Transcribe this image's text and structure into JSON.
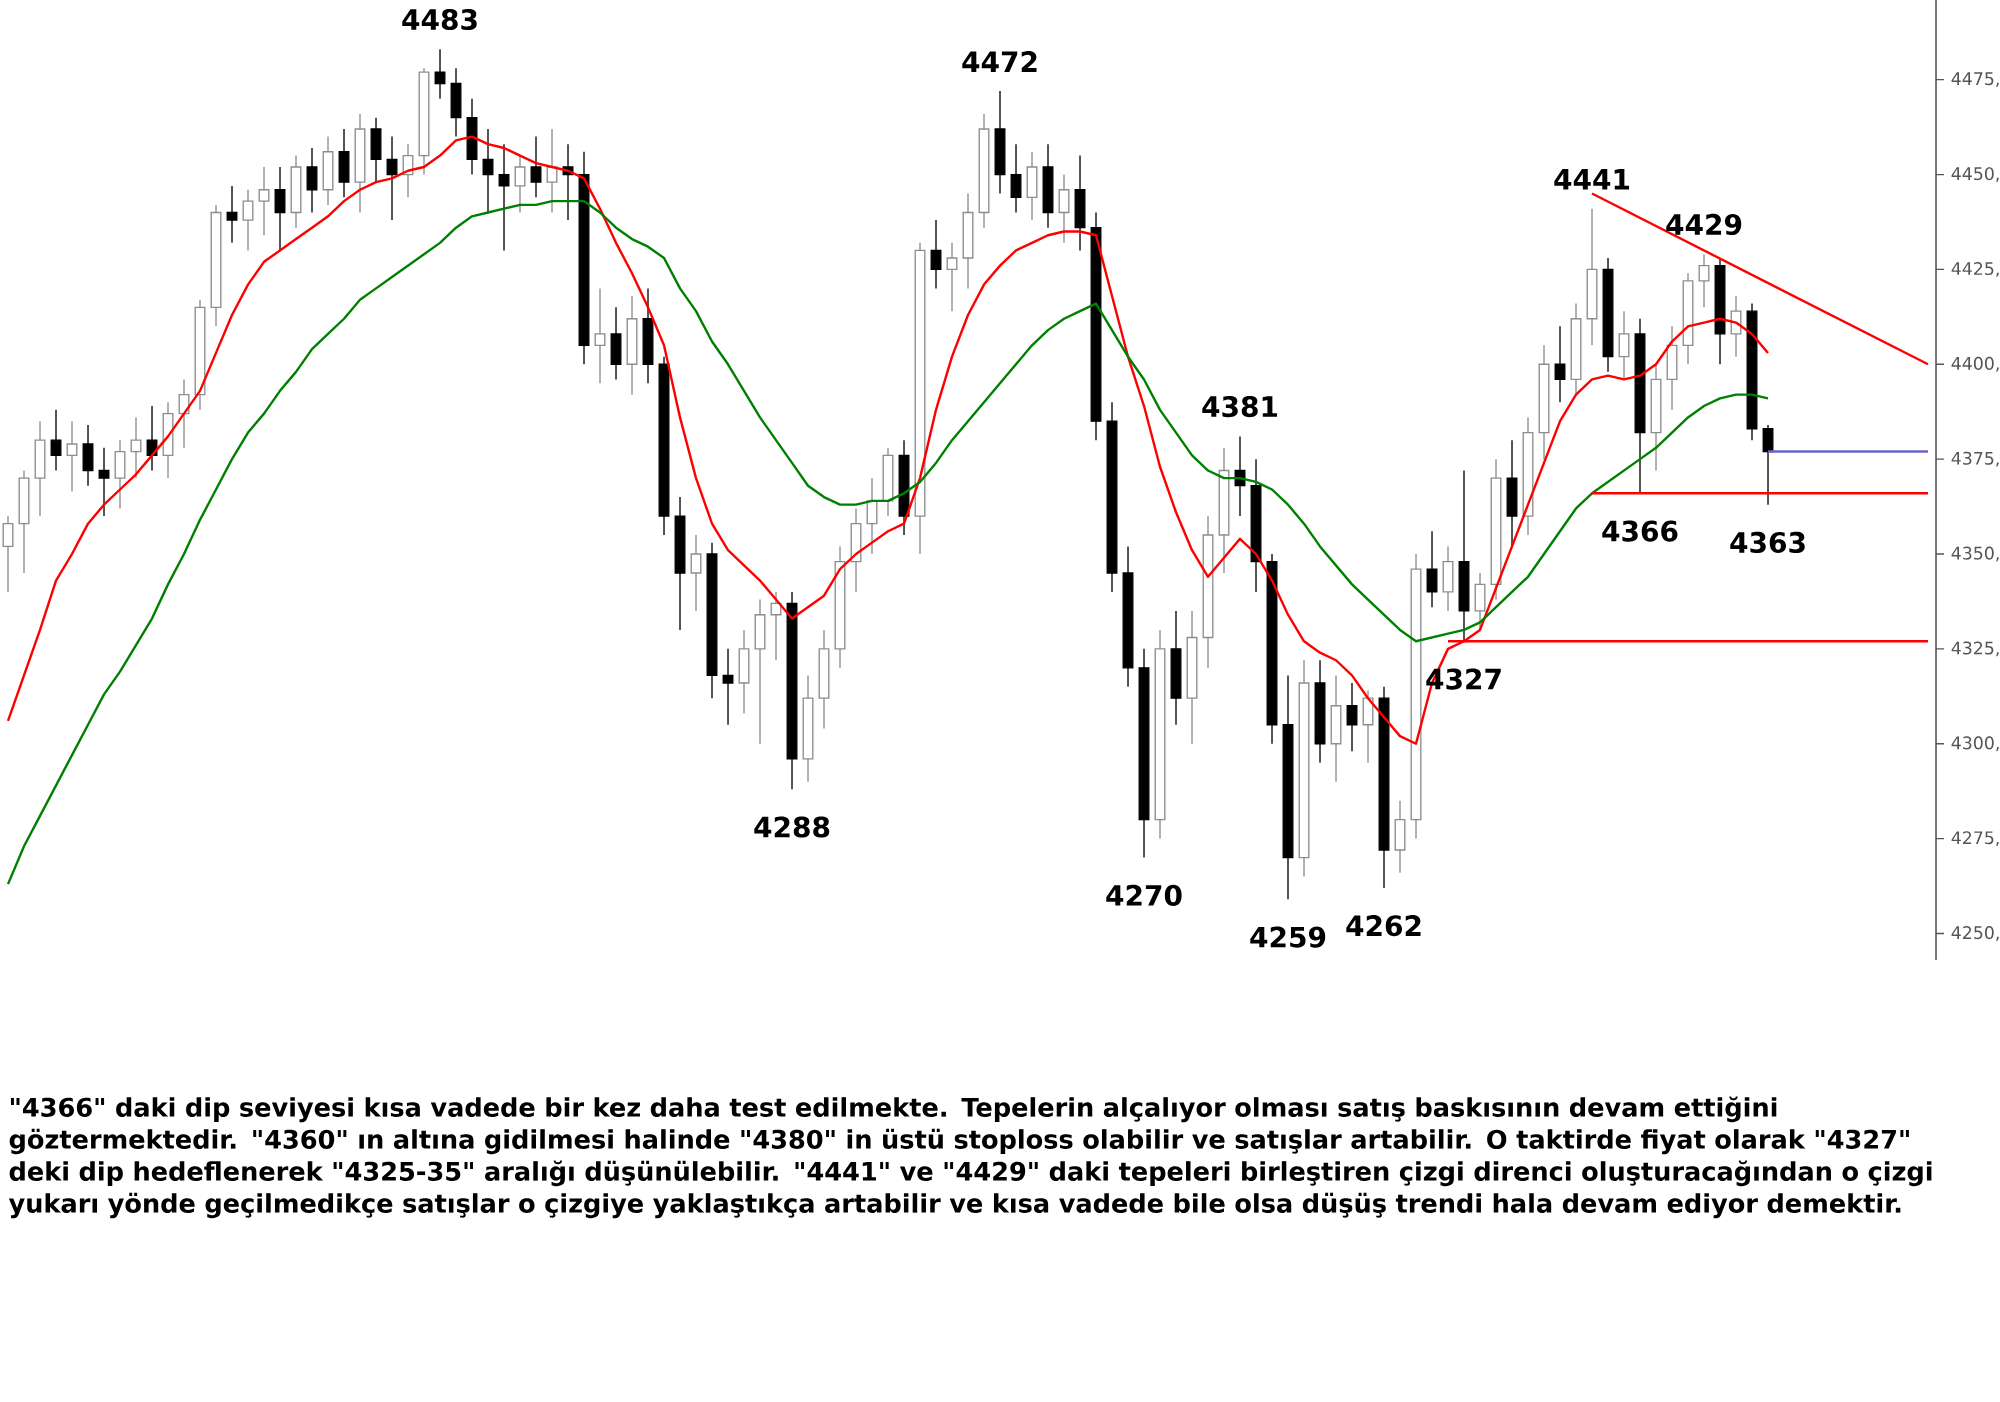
{
  "chart_data": {
    "type": "candlestick",
    "categories": [
      null,
      null,
      null,
      null,
      null,
      null,
      null,
      null,
      null,
      null,
      null,
      null,
      null,
      null,
      null,
      null,
      null,
      null,
      null,
      null,
      null,
      null,
      null,
      null,
      null,
      null,
      null,
      null,
      null,
      null,
      null,
      null,
      null,
      null,
      null,
      null,
      null,
      null,
      null,
      null,
      null,
      null,
      null,
      null,
      null,
      null,
      null,
      null,
      null,
      null,
      null,
      null,
      null,
      null,
      null,
      null,
      null,
      null,
      null,
      null,
      null,
      null,
      null,
      null,
      null,
      null,
      null,
      null,
      null,
      null,
      null,
      null,
      null,
      null,
      null,
      null,
      null,
      null,
      null,
      null,
      null,
      null,
      null,
      null,
      null,
      null,
      null,
      null,
      null,
      null,
      null,
      null,
      null,
      null,
      null,
      null,
      null,
      null,
      null,
      null,
      null,
      null,
      null,
      null,
      null,
      null,
      null,
      null,
      null,
      null,
      null,
      null,
      null,
      null,
      null,
      null,
      null,
      null,
      null,
      null,
      null
    ],
    "ohlc": [
      [
        4352,
        4360,
        4340,
        4358
      ],
      [
        4358,
        4372,
        4345,
        4370
      ],
      [
        4370,
        4385,
        4360,
        4380
      ],
      [
        4380,
        4388,
        4372,
        4376
      ],
      [
        4376,
        4385,
        4366.5,
        4379
      ],
      [
        4379,
        4384,
        4368,
        4372
      ],
      [
        4372,
        4378,
        4360,
        4370
      ],
      [
        4370,
        4380,
        4362,
        4377
      ],
      [
        4377,
        4386,
        4370,
        4380
      ],
      [
        4380,
        4389,
        4372,
        4376
      ],
      [
        4376,
        4390,
        4370,
        4387
      ],
      [
        4387,
        4396,
        4378,
        4392
      ],
      [
        4392,
        4417,
        4388,
        4415
      ],
      [
        4415,
        4442,
        4410,
        4440
      ],
      [
        4440,
        4447,
        4432,
        4438
      ],
      [
        4438,
        4446,
        4430,
        4443
      ],
      [
        4443,
        4452,
        4434,
        4446
      ],
      [
        4446,
        4452,
        4430,
        4440
      ],
      [
        4440,
        4455,
        4436,
        4452
      ],
      [
        4452,
        4457,
        4440,
        4446
      ],
      [
        4446,
        4460,
        4442,
        4456
      ],
      [
        4456,
        4462,
        4444,
        4448
      ],
      [
        4448,
        4466,
        4440,
        4462
      ],
      [
        4462,
        4465,
        4448,
        4454
      ],
      [
        4454,
        4460,
        4438,
        4450
      ],
      [
        4450,
        4458,
        4444,
        4455
      ],
      [
        4455,
        4478,
        4450,
        4477
      ],
      [
        4477,
        4483,
        4470,
        4474
      ],
      [
        4474,
        4478,
        4460,
        4465
      ],
      [
        4465,
        4470,
        4450,
        4454
      ],
      [
        4454,
        4462,
        4440,
        4450
      ],
      [
        4450,
        4458,
        4430,
        4447
      ],
      [
        4447,
        4455,
        4440,
        4452
      ],
      [
        4452,
        4460,
        4444,
        4448
      ],
      [
        4448,
        4462,
        4440,
        4452
      ],
      [
        4452,
        4458,
        4438,
        4450
      ],
      [
        4450,
        4456,
        4400,
        4405
      ],
      [
        4405,
        4420,
        4395,
        4408
      ],
      [
        4408,
        4415,
        4396,
        4400
      ],
      [
        4400,
        4418,
        4392,
        4412
      ],
      [
        4412,
        4420,
        4395,
        4400
      ],
      [
        4400,
        4402,
        4355,
        4360
      ],
      [
        4360,
        4365,
        4330,
        4345
      ],
      [
        4345,
        4355,
        4335,
        4350
      ],
      [
        4350,
        4353,
        4312,
        4318
      ],
      [
        4318,
        4325,
        4305,
        4316
      ],
      [
        4316,
        4330,
        4308,
        4325
      ],
      [
        4325,
        4338,
        4300,
        4334
      ],
      [
        4334,
        4340,
        4322,
        4337
      ],
      [
        4337,
        4340,
        4288,
        4296
      ],
      [
        4296,
        4318,
        4290,
        4312
      ],
      [
        4312,
        4330,
        4304,
        4325
      ],
      [
        4325,
        4352,
        4320,
        4348
      ],
      [
        4348,
        4362,
        4340,
        4358
      ],
      [
        4358,
        4370,
        4350,
        4364
      ],
      [
        4364,
        4378,
        4360,
        4376
      ],
      [
        4376,
        4380,
        4355,
        4360
      ],
      [
        4360,
        4432,
        4350,
        4430
      ],
      [
        4430,
        4438,
        4420,
        4425
      ],
      [
        4425,
        4432,
        4414,
        4428
      ],
      [
        4428,
        4445,
        4420,
        4440
      ],
      [
        4440,
        4466,
        4436,
        4462
      ],
      [
        4462,
        4472,
        4445,
        4450
      ],
      [
        4450,
        4458,
        4440,
        4444
      ],
      [
        4444,
        4456,
        4438,
        4452
      ],
      [
        4452,
        4458,
        4436,
        4440
      ],
      [
        4440,
        4450,
        4432,
        4446
      ],
      [
        4446,
        4455,
        4430,
        4436
      ],
      [
        4436,
        4440,
        4380,
        4385
      ],
      [
        4385,
        4390,
        4340,
        4345
      ],
      [
        4345,
        4352,
        4315,
        4320
      ],
      [
        4320,
        4325,
        4270,
        4280
      ],
      [
        4280,
        4330,
        4275,
        4325
      ],
      [
        4325,
        4335,
        4305,
        4312
      ],
      [
        4312,
        4335,
        4300,
        4328
      ],
      [
        4328,
        4360,
        4320,
        4355
      ],
      [
        4355,
        4378,
        4345,
        4372
      ],
      [
        4372,
        4381,
        4360,
        4368
      ],
      [
        4368,
        4375,
        4340,
        4348
      ],
      [
        4348,
        4350,
        4300,
        4305
      ],
      [
        4305,
        4318,
        4259,
        4270
      ],
      [
        4270,
        4322,
        4265,
        4316
      ],
      [
        4316,
        4322,
        4295,
        4300
      ],
      [
        4300,
        4318,
        4290,
        4310
      ],
      [
        4310,
        4316,
        4298,
        4305
      ],
      [
        4305,
        4314,
        4295,
        4312
      ],
      [
        4312,
        4315,
        4262,
        4272
      ],
      [
        4272,
        4285,
        4266,
        4280
      ],
      [
        4280,
        4350,
        4275,
        4346
      ],
      [
        4346,
        4356,
        4336,
        4340
      ],
      [
        4340,
        4352,
        4335,
        4348
      ],
      [
        4348,
        4372,
        4327,
        4335
      ],
      [
        4335,
        4345,
        4330,
        4342
      ],
      [
        4342,
        4375,
        4338,
        4370
      ],
      [
        4370,
        4380,
        4352,
        4360
      ],
      [
        4360,
        4386,
        4355,
        4382
      ],
      [
        4382,
        4405,
        4375,
        4400
      ],
      [
        4400,
        4410,
        4390,
        4396
      ],
      [
        4396,
        4416,
        4392,
        4412
      ],
      [
        4412,
        4441,
        4405,
        4425
      ],
      [
        4425,
        4428,
        4398,
        4402
      ],
      [
        4402,
        4414,
        4396,
        4408
      ],
      [
        4408,
        4412,
        4366,
        4382
      ],
      [
        4382,
        4400,
        4372,
        4396
      ],
      [
        4396,
        4410,
        4388,
        4405
      ],
      [
        4405,
        4424,
        4400,
        4422
      ],
      [
        4422,
        4429,
        4415,
        4426
      ],
      [
        4426,
        4428,
        4400,
        4408
      ],
      [
        4408,
        4418,
        4402,
        4414
      ],
      [
        4414,
        4416,
        4380,
        4383
      ],
      [
        4383,
        4384,
        4363,
        4377
      ],
      null,
      null,
      null,
      null,
      null,
      null,
      null,
      null,
      null,
      null
    ],
    "series": [
      {
        "type": "line",
        "color": "#ff0000",
        "values": [
          4306,
          4318,
          4330,
          4343,
          4350,
          4358,
          4363,
          4367,
          4371,
          4376,
          4381,
          4387,
          4393,
          4403,
          4413,
          4421,
          4427,
          4430,
          4433,
          4436,
          4439,
          4443,
          4446,
          4448,
          4449,
          4451,
          4452,
          4455,
          4459,
          4460,
          4458,
          4457,
          4455,
          4453,
          4452,
          4451,
          4449,
          4441,
          4432,
          4424,
          4415,
          4405,
          4386,
          4370,
          4358,
          4351,
          4347,
          4343,
          4338,
          4333,
          4336,
          4339,
          4346,
          4350,
          4353,
          4356,
          4358,
          4370,
          4388,
          4402,
          4413,
          4421,
          4426,
          4430,
          4432,
          4434,
          4435,
          4435,
          4434,
          4418,
          4402,
          4389,
          4373,
          4361,
          4351,
          4344,
          4349,
          4354,
          4350,
          4343,
          4334,
          4327,
          4324,
          4322,
          4318,
          4312,
          4307,
          4302,
          4300,
          4316,
          4325,
          4327,
          4330,
          4341,
          4352,
          4363,
          4374,
          4385,
          4392,
          4396,
          4397,
          4396,
          4397,
          4400,
          4406,
          4410,
          4411,
          4412,
          4411,
          4408,
          4403,
          null,
          null,
          null,
          null,
          null,
          null,
          null,
          null,
          null,
          null
        ]
      },
      {
        "type": "line",
        "color": "#008000",
        "values": [
          4263,
          4273,
          4281,
          4289,
          4297,
          4305,
          4313,
          4319,
          4326,
          4333,
          4342,
          4350,
          4359,
          4367,
          4375,
          4382,
          4387,
          4393,
          4398,
          4404,
          4408,
          4412,
          4417,
          4420,
          4423,
          4426,
          4429,
          4432,
          4436,
          4439,
          4440,
          4441,
          4442,
          4442,
          4443,
          4443,
          4443,
          4440,
          4436,
          4433,
          4431,
          4428,
          4420,
          4414,
          4406,
          4400,
          4393,
          4386,
          4380,
          4374,
          4368,
          4365,
          4363,
          4363,
          4364,
          4364,
          4366,
          4369,
          4374,
          4380,
          4385,
          4390,
          4395,
          4400,
          4405,
          4409,
          4412,
          4414,
          4416,
          4409,
          4402,
          4396,
          4388,
          4382,
          4376,
          4372,
          4370,
          4370,
          4369,
          4367,
          4363,
          4358,
          4352,
          4347,
          4342,
          4338,
          4334,
          4330,
          4327,
          4328,
          4329,
          4330,
          4332,
          4336,
          4340,
          4344,
          4350,
          4356,
          4362,
          4366,
          4369,
          4372,
          4375,
          4378,
          4382,
          4386,
          4389,
          4391,
          4392,
          4392,
          4391,
          null,
          null,
          null,
          null,
          null,
          null,
          null,
          null,
          null,
          null
        ]
      },
      {
        "type": "line",
        "color": "#ff0000",
        "values": [
          null,
          null,
          null,
          null,
          null,
          null,
          null,
          null,
          null,
          null,
          null,
          null,
          null,
          null,
          null,
          null,
          null,
          null,
          null,
          null,
          null,
          null,
          null,
          null,
          null,
          null,
          null,
          null,
          null,
          null,
          null,
          null,
          null,
          null,
          null,
          null,
          null,
          null,
          null,
          null,
          null,
          null,
          null,
          null,
          null,
          null,
          null,
          null,
          null,
          null,
          null,
          null,
          null,
          null,
          null,
          null,
          null,
          null,
          null,
          null,
          null,
          null,
          null,
          null,
          null,
          null,
          null,
          null,
          null,
          null,
          null,
          null,
          null,
          null,
          null,
          null,
          null,
          null,
          null,
          null,
          null,
          null,
          null,
          null,
          null,
          null,
          null,
          null,
          null,
          null,
          null,
          null,
          null,
          null,
          null,
          null,
          null,
          null,
          null,
          4445,
          null,
          null,
          null,
          null,
          null,
          null,
          null,
          null,
          null,
          null,
          null,
          null,
          null,
          null,
          null,
          null,
          null,
          null,
          null,
          null,
          4400
        ]
      },
      {
        "type": "line",
        "color": "#ff0000",
        "values": [
          null,
          null,
          null,
          null,
          null,
          null,
          null,
          null,
          null,
          null,
          null,
          null,
          null,
          null,
          null,
          null,
          null,
          null,
          null,
          null,
          null,
          null,
          null,
          null,
          null,
          null,
          null,
          null,
          null,
          null,
          null,
          null,
          null,
          null,
          null,
          null,
          null,
          null,
          null,
          null,
          null,
          null,
          null,
          null,
          null,
          null,
          null,
          null,
          null,
          null,
          null,
          null,
          null,
          null,
          null,
          null,
          null,
          null,
          null,
          null,
          null,
          null,
          null,
          null,
          null,
          null,
          null,
          null,
          null,
          null,
          null,
          null,
          null,
          null,
          null,
          null,
          null,
          null,
          null,
          null,
          null,
          null,
          null,
          null,
          null,
          null,
          null,
          null,
          null,
          null,
          null,
          null,
          null,
          null,
          null,
          null,
          null,
          null,
          null,
          4366,
          null,
          null,
          null,
          null,
          null,
          null,
          null,
          null,
          null,
          null,
          null,
          null,
          null,
          null,
          null,
          null,
          null,
          null,
          null,
          null,
          4366
        ]
      },
      {
        "type": "line",
        "color": "#ff0000",
        "values": [
          null,
          null,
          null,
          null,
          null,
          null,
          null,
          null,
          null,
          null,
          null,
          null,
          null,
          null,
          null,
          null,
          null,
          null,
          null,
          null,
          null,
          null,
          null,
          null,
          null,
          null,
          null,
          null,
          null,
          null,
          null,
          null,
          null,
          null,
          null,
          null,
          null,
          null,
          null,
          null,
          null,
          null,
          null,
          null,
          null,
          null,
          null,
          null,
          null,
          null,
          null,
          null,
          null,
          null,
          null,
          null,
          null,
          null,
          null,
          null,
          null,
          null,
          null,
          null,
          null,
          null,
          null,
          null,
          null,
          null,
          null,
          null,
          null,
          null,
          null,
          null,
          null,
          null,
          null,
          null,
          null,
          null,
          null,
          null,
          null,
          null,
          null,
          null,
          null,
          null,
          4327,
          null,
          null,
          null,
          null,
          null,
          null,
          null,
          null,
          null,
          null,
          null,
          null,
          null,
          null,
          null,
          null,
          null,
          null,
          null,
          null,
          null,
          null,
          null,
          null,
          null,
          null,
          null,
          null,
          null,
          4327
        ]
      },
      {
        "type": "line",
        "color": "#6666cc",
        "values": [
          null,
          null,
          null,
          null,
          null,
          null,
          null,
          null,
          null,
          null,
          null,
          null,
          null,
          null,
          null,
          null,
          null,
          null,
          null,
          null,
          null,
          null,
          null,
          null,
          null,
          null,
          null,
          null,
          null,
          null,
          null,
          null,
          null,
          null,
          null,
          null,
          null,
          null,
          null,
          null,
          null,
          null,
          null,
          null,
          null,
          null,
          null,
          null,
          null,
          null,
          null,
          null,
          null,
          null,
          null,
          null,
          null,
          null,
          null,
          null,
          null,
          null,
          null,
          null,
          null,
          null,
          null,
          null,
          null,
          null,
          null,
          null,
          null,
          null,
          null,
          null,
          null,
          null,
          null,
          null,
          null,
          null,
          null,
          null,
          null,
          null,
          null,
          null,
          null,
          null,
          null,
          null,
          null,
          null,
          null,
          null,
          null,
          null,
          null,
          null,
          null,
          null,
          null,
          null,
          null,
          null,
          null,
          null,
          null,
          null,
          4377,
          null,
          null,
          null,
          null,
          null,
          null,
          null,
          null,
          null,
          4377
        ]
      }
    ],
    "ylim": [
      4243,
      4496
    ],
    "yticks": [
      {
        "value": 4250,
        "label": "4250,"
      },
      {
        "value": 4275,
        "label": "4275,"
      },
      {
        "value": 4300,
        "label": "4300,"
      },
      {
        "value": 4325,
        "label": "4325,"
      },
      {
        "value": 4350,
        "label": "4350,"
      },
      {
        "value": 4375,
        "label": "4375,"
      },
      {
        "value": 4400,
        "label": "4400,"
      },
      {
        "value": 4425,
        "label": "4425,"
      },
      {
        "value": 4450,
        "label": "4450,"
      },
      {
        "value": 4475,
        "label": "4475,"
      }
    ],
    "annotations": [
      {
        "text": "4483",
        "y": 4483
      },
      {
        "text": "4472",
        "y": 4472
      },
      {
        "text": "4441",
        "y": 4441
      },
      {
        "text": "4429",
        "y": 4429
      },
      {
        "text": "4381",
        "y": 4381
      },
      {
        "text": "4288",
        "y": 4288
      },
      {
        "text": "4270",
        "y": 4270
      },
      {
        "text": "4259",
        "y": 4259
      },
      {
        "text": "4262",
        "y": 4262
      },
      {
        "text": "4327",
        "y": 4327
      },
      {
        "text": "4366",
        "y": 4366
      },
      {
        "text": "4363",
        "y": 4363
      },
      "\"4366\" daki dip seviyesi kısa vadede bir kez daha test edilmekte. Tepelerin alçalıyor olması satış baskısının devam ettiğini göztermektedir. \"4360\" ın altına gidilmesi halinde \"4380\" in üstü stoploss olabilir ve satışlar artabilir. O taktirde fiyat olarak \"4327\" deki dip hedeflenerek \"4325-35\" aralığı düşünülebilir. \"4441\" ve \"4429\" daki tepeleri birleştiren çizgi direnci oluşturacağından o çizgi yukarı yönde geçilmedikçe satışlar o çizgiye yaklaştıkça artabilir ve kısa vadede bile olsa düşüş trendi hala devam ediyor demektir."
    ]
  }
}
